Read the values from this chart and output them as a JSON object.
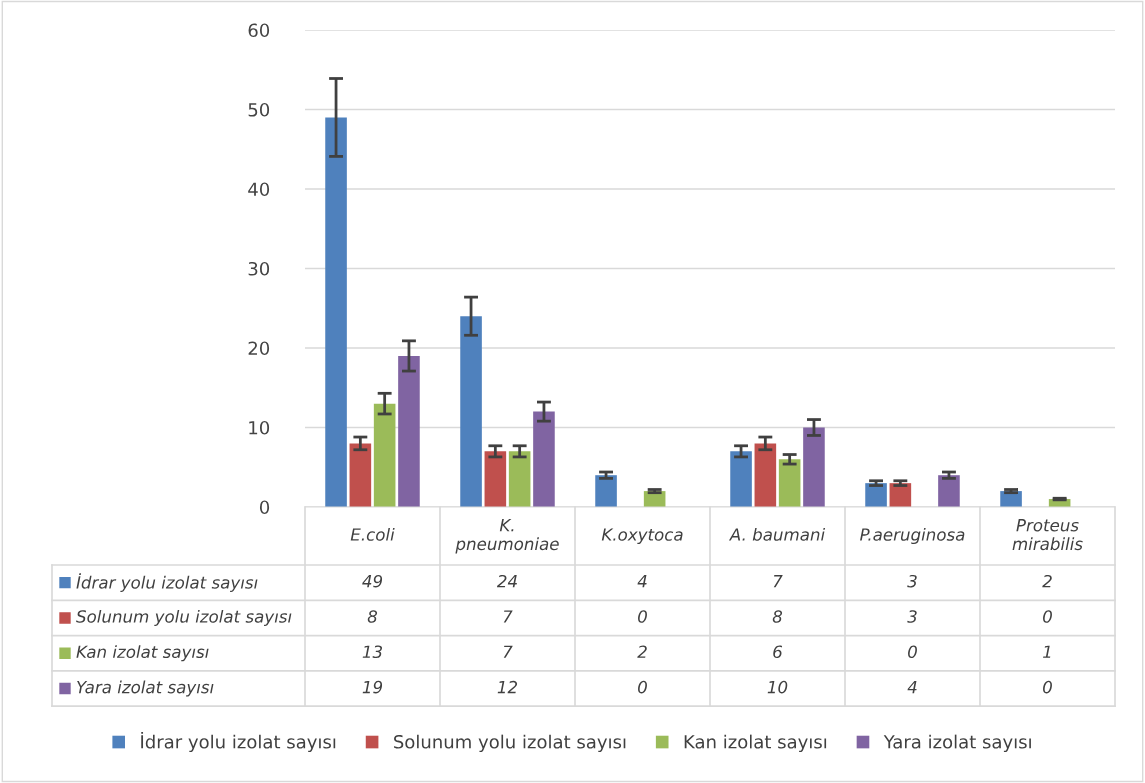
{
  "chart_data": {
    "type": "bar",
    "categories": [
      "E.coli",
      "K. pneumoniae",
      "K.oxytoca",
      "A. baumani",
      "P.aeruginosa",
      "Proteus mirabilis"
    ],
    "series": [
      {
        "name": "İdrar yolu izolat sayısı",
        "color": "#4f81bd",
        "values": [
          49,
          24,
          4,
          7,
          3,
          2
        ],
        "errors": [
          4.9,
          2.4,
          0.4,
          0.7,
          0.3,
          0.2
        ]
      },
      {
        "name": "Solunum yolu izolat sayısı",
        "color": "#c0504d",
        "values": [
          8,
          7,
          0,
          8,
          3,
          0
        ],
        "errors": [
          0.8,
          0.7,
          null,
          0.8,
          0.3,
          null
        ]
      },
      {
        "name": "Kan izolat sayısı",
        "color": "#9bbb59",
        "values": [
          13,
          7,
          2,
          6,
          0,
          1
        ],
        "errors": [
          1.3,
          0.7,
          0.2,
          0.6,
          null,
          0.1
        ]
      },
      {
        "name": "Yara izolat sayısı",
        "color": "#8064a2",
        "values": [
          19,
          12,
          0,
          10,
          4,
          0
        ],
        "errors": [
          1.9,
          1.2,
          null,
          1.0,
          0.4,
          null
        ]
      }
    ],
    "ylim": [
      0,
      60
    ],
    "yticks": [
      0,
      10,
      20,
      30,
      40,
      50,
      60
    ],
    "grid": "y",
    "legend": "bottom",
    "data_labels": true
  }
}
